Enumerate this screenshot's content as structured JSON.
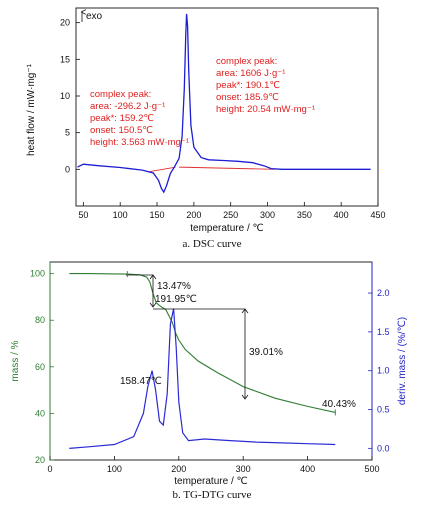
{
  "chart_data": [
    {
      "type": "line",
      "caption": "a.  DSC curve",
      "xlabel": "temperature / ℃",
      "ylabel": "heat flow / mW·mg⁻¹",
      "exo_label": "exo",
      "xlim": [
        40,
        450
      ],
      "ylim": [
        -5,
        22
      ],
      "xticks": [
        50,
        100,
        150,
        200,
        250,
        300,
        350,
        400,
        450
      ],
      "yticks": [
        0,
        5,
        10,
        15,
        20
      ],
      "colors": {
        "curve": "#1d1dd6",
        "baseline": "#e03030",
        "annotation": "#e02020"
      },
      "series": [
        {
          "x": [
            42,
            50,
            70,
            100,
            130,
            145,
            152,
            156,
            159.2,
            163,
            168,
            174,
            180,
            184,
            187,
            189,
            190.1,
            191.5,
            193,
            196,
            200,
            210,
            220,
            240,
            260,
            280,
            295,
            305,
            320,
            350,
            380,
            410,
            440
          ],
          "y": [
            0.3,
            0.7,
            0.5,
            0.25,
            -0.1,
            -0.5,
            -1.5,
            -2.6,
            -3.1,
            -2.2,
            -0.6,
            0.4,
            1.5,
            4.5,
            11.0,
            18.5,
            21.2,
            19.5,
            13.5,
            6.0,
            3.0,
            1.6,
            1.3,
            1.2,
            1.1,
            0.9,
            0.5,
            0.1,
            0.0,
            0.0,
            0.0,
            0.0,
            0.0
          ]
        }
      ],
      "annotations": [
        {
          "lines": [
            "complex peak:",
            "area: -296.2 J·g⁻¹",
            "peak*: 159.2℃",
            "onset: 150.5℃",
            "height: 3.563 mW·mg⁻¹"
          ]
        },
        {
          "lines": [
            "complex peak:",
            "area: 1606 J·g⁻¹",
            "peak*: 190.1℃",
            "onset: 185.9℃",
            "height: 20.54 mW·mg⁻¹"
          ]
        }
      ]
    },
    {
      "type": "line",
      "caption": "b.  TG-DTG curve",
      "xlabel": "temperature / ℃",
      "ylabel_left": "mass / %",
      "ylabel_right": "deriv. mass / (%/℃)",
      "xlim": [
        0,
        500
      ],
      "ylim_left": [
        20,
        105
      ],
      "ylim_right": [
        -0.15,
        2.4
      ],
      "xticks": [
        0,
        100,
        200,
        300,
        400,
        500
      ],
      "yticks_left": [
        20,
        40,
        60,
        80,
        100
      ],
      "yticks_right": [
        0.0,
        0.5,
        1.0,
        1.5,
        2.0
      ],
      "colors": {
        "tg": "#2e7d32",
        "dtg": "#2b2bd6",
        "right_axis": "#2323c8",
        "left_axis": "#2e7d32"
      },
      "series": [
        {
          "axis": "left",
          "x": [
            30,
            60,
            100,
            120,
            140,
            150,
            155,
            160,
            165,
            170,
            180,
            190,
            195,
            200,
            210,
            230,
            260,
            300,
            350,
            400,
            443
          ],
          "y": [
            100,
            100,
            99.9,
            99.8,
            99.5,
            98.5,
            96.5,
            91.5,
            87.5,
            86.3,
            84.5,
            79,
            74.5,
            71.5,
            67.5,
            62.5,
            57.5,
            51.5,
            46.5,
            43,
            40.43
          ]
        },
        {
          "axis": "right",
          "x": [
            30,
            60,
            100,
            130,
            145,
            152,
            158.47,
            164,
            170,
            176,
            182,
            187,
            191.95,
            196,
            200,
            206,
            215,
            240,
            280,
            320,
            360,
            400,
            443
          ],
          "y": [
            0.0,
            0.02,
            0.05,
            0.15,
            0.45,
            0.8,
            1.0,
            0.75,
            0.35,
            0.3,
            0.7,
            1.6,
            1.8,
            1.3,
            0.6,
            0.2,
            0.1,
            0.12,
            0.1,
            0.08,
            0.07,
            0.06,
            0.05
          ]
        }
      ],
      "annotations": {
        "step1": "13.47%",
        "peak2": "191.95℃",
        "step2": "39.01%",
        "peak1": "158.47℃",
        "residue": "40.43%"
      }
    }
  ]
}
